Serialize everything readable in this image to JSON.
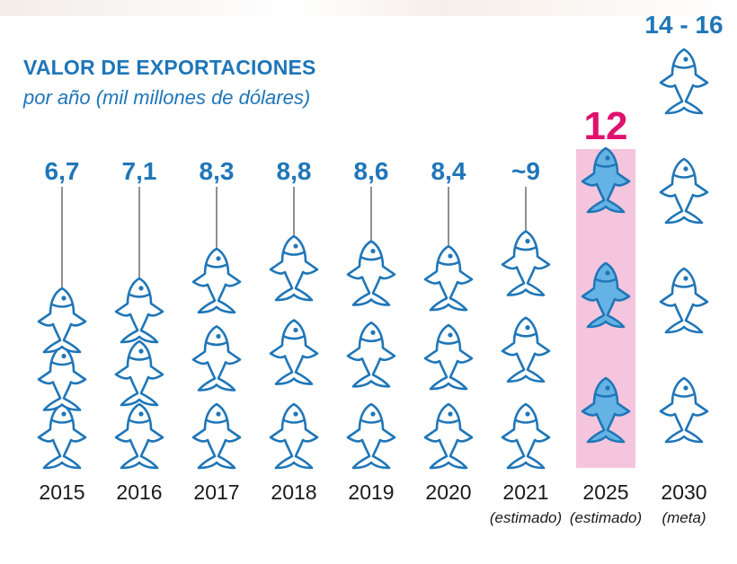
{
  "chart_data": {
    "type": "pictogram",
    "title": "VALOR DE EXPORTACIONES",
    "subtitle": "por año (mil millones de dólares)",
    "categories": [
      "2015",
      "2016",
      "2017",
      "2018",
      "2019",
      "2020",
      "2021",
      "2025",
      "2030"
    ],
    "values": [
      6.7,
      7.1,
      8.3,
      8.8,
      8.6,
      8.4,
      9,
      12,
      15
    ],
    "value_labels": [
      "6,7",
      "7,1",
      "8,3",
      "8,8",
      "8,6",
      "8,4",
      "~9",
      "12",
      "14 - 16"
    ],
    "range_2030": [
      14,
      16
    ],
    "notes": [
      "",
      "",
      "",
      "",
      "",
      "",
      "(estimado)",
      "(estimado)",
      "(meta)"
    ],
    "highlight_category": "2025",
    "colors": {
      "text": "#1f76b8",
      "fish_stroke": "#1f76b8",
      "fish_fill": "#ffffff",
      "highlight_fish_fill": "#65b3e4",
      "highlight_background": "#f5c5dd",
      "highlight_label": "#e0116e",
      "year_text": "#1a1a1a"
    }
  }
}
